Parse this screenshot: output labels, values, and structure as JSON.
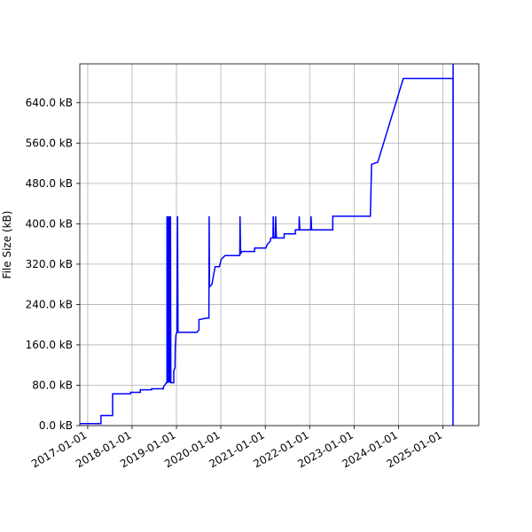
{
  "chart_data": {
    "type": "line",
    "title": "",
    "xlabel": "",
    "ylabel": "File Size (kB)",
    "xlim": [
      "2016-10-28",
      "2025-10-23"
    ],
    "ylim": [
      0,
      717
    ],
    "grid": true,
    "x_ticks": [
      "2017-01-01",
      "2018-01-01",
      "2019-01-01",
      "2020-01-01",
      "2021-01-01",
      "2022-01-01",
      "2023-01-01",
      "2024-01-01",
      "2025-01-01"
    ],
    "y_ticks": [
      0,
      80,
      160,
      240,
      320,
      400,
      480,
      560,
      640
    ],
    "y_tick_labels": [
      "0.0 kB",
      "80.0 kB",
      "160.0 kB",
      "240.0 kB",
      "320.0 kB",
      "400.0 kB",
      "480.0 kB",
      "560.0 kB",
      "640.0 kB"
    ],
    "series": [
      {
        "color": "#0000ff",
        "points": [
          [
            "2016-10-28",
            4
          ],
          [
            "2017-04-20",
            4
          ],
          [
            "2017-04-20",
            20
          ],
          [
            "2017-07-25",
            20
          ],
          [
            "2017-07-25",
            63
          ],
          [
            "2017-12-20",
            63
          ],
          [
            "2017-12-20",
            66
          ],
          [
            "2018-03-10",
            66
          ],
          [
            "2018-03-10",
            71
          ],
          [
            "2018-06-10",
            71
          ],
          [
            "2018-06-10",
            73
          ],
          [
            "2018-09-15",
            73
          ],
          [
            "2018-09-15",
            76
          ],
          [
            "2018-10-10",
            85
          ],
          [
            "2018-10-15",
            85
          ],
          [
            "2018-10-15",
            415
          ],
          [
            "2018-10-17",
            85
          ],
          [
            "2018-10-20",
            415
          ],
          [
            "2018-10-23",
            85
          ],
          [
            "2018-10-26",
            415
          ],
          [
            "2018-10-29",
            85
          ],
          [
            "2018-11-01",
            415
          ],
          [
            "2018-11-04",
            85
          ],
          [
            "2018-11-07",
            415
          ],
          [
            "2018-11-10",
            85
          ],
          [
            "2018-11-13",
            415
          ],
          [
            "2018-11-16",
            85
          ],
          [
            "2018-12-10",
            85
          ],
          [
            "2018-12-10",
            108
          ],
          [
            "2018-12-20",
            115
          ],
          [
            "2018-12-22",
            155
          ],
          [
            "2018-12-28",
            180
          ],
          [
            "2019-01-05",
            185
          ],
          [
            "2019-01-10",
            415
          ],
          [
            "2019-01-14",
            185
          ],
          [
            "2019-06-20",
            185
          ],
          [
            "2019-07-05",
            190
          ],
          [
            "2019-07-05",
            210
          ],
          [
            "2019-09-05",
            213
          ],
          [
            "2019-09-05",
            213
          ],
          [
            "2019-09-25",
            213
          ],
          [
            "2019-09-27",
            415
          ],
          [
            "2019-09-30",
            275
          ],
          [
            "2019-10-20",
            280
          ],
          [
            "2019-11-15",
            315
          ],
          [
            "2019-12-20",
            315
          ],
          [
            "2020-01-05",
            330
          ],
          [
            "2020-02-05",
            337
          ],
          [
            "2020-06-05",
            337
          ],
          [
            "2020-06-07",
            415
          ],
          [
            "2020-06-12",
            340
          ],
          [
            "2020-06-20",
            345
          ],
          [
            "2020-10-05",
            345
          ],
          [
            "2020-10-05",
            352
          ],
          [
            "2021-01-05",
            352
          ],
          [
            "2021-01-20",
            360
          ],
          [
            "2021-02-10",
            365
          ],
          [
            "2021-02-15",
            372
          ],
          [
            "2021-03-05",
            372
          ],
          [
            "2021-03-07",
            415
          ],
          [
            "2021-03-12",
            372
          ],
          [
            "2021-03-25",
            372
          ],
          [
            "2021-03-27",
            415
          ],
          [
            "2021-04-02",
            372
          ],
          [
            "2021-06-05",
            372
          ],
          [
            "2021-06-05",
            380
          ],
          [
            "2021-09-05",
            380
          ],
          [
            "2021-09-05",
            388
          ],
          [
            "2021-10-05",
            388
          ],
          [
            "2021-10-07",
            415
          ],
          [
            "2021-10-12",
            388
          ],
          [
            "2022-01-10",
            388
          ],
          [
            "2022-01-12",
            415
          ],
          [
            "2022-01-17",
            388
          ],
          [
            "2022-07-10",
            388
          ],
          [
            "2022-07-10",
            415
          ],
          [
            "2023-05-15",
            415
          ],
          [
            "2023-05-25",
            518
          ],
          [
            "2023-07-15",
            522
          ],
          [
            "2024-02-10",
            688
          ],
          [
            "2025-03-25",
            688
          ],
          [
            "2025-03-25",
            0
          ],
          [
            "2025-03-26",
            720
          ]
        ]
      }
    ]
  }
}
